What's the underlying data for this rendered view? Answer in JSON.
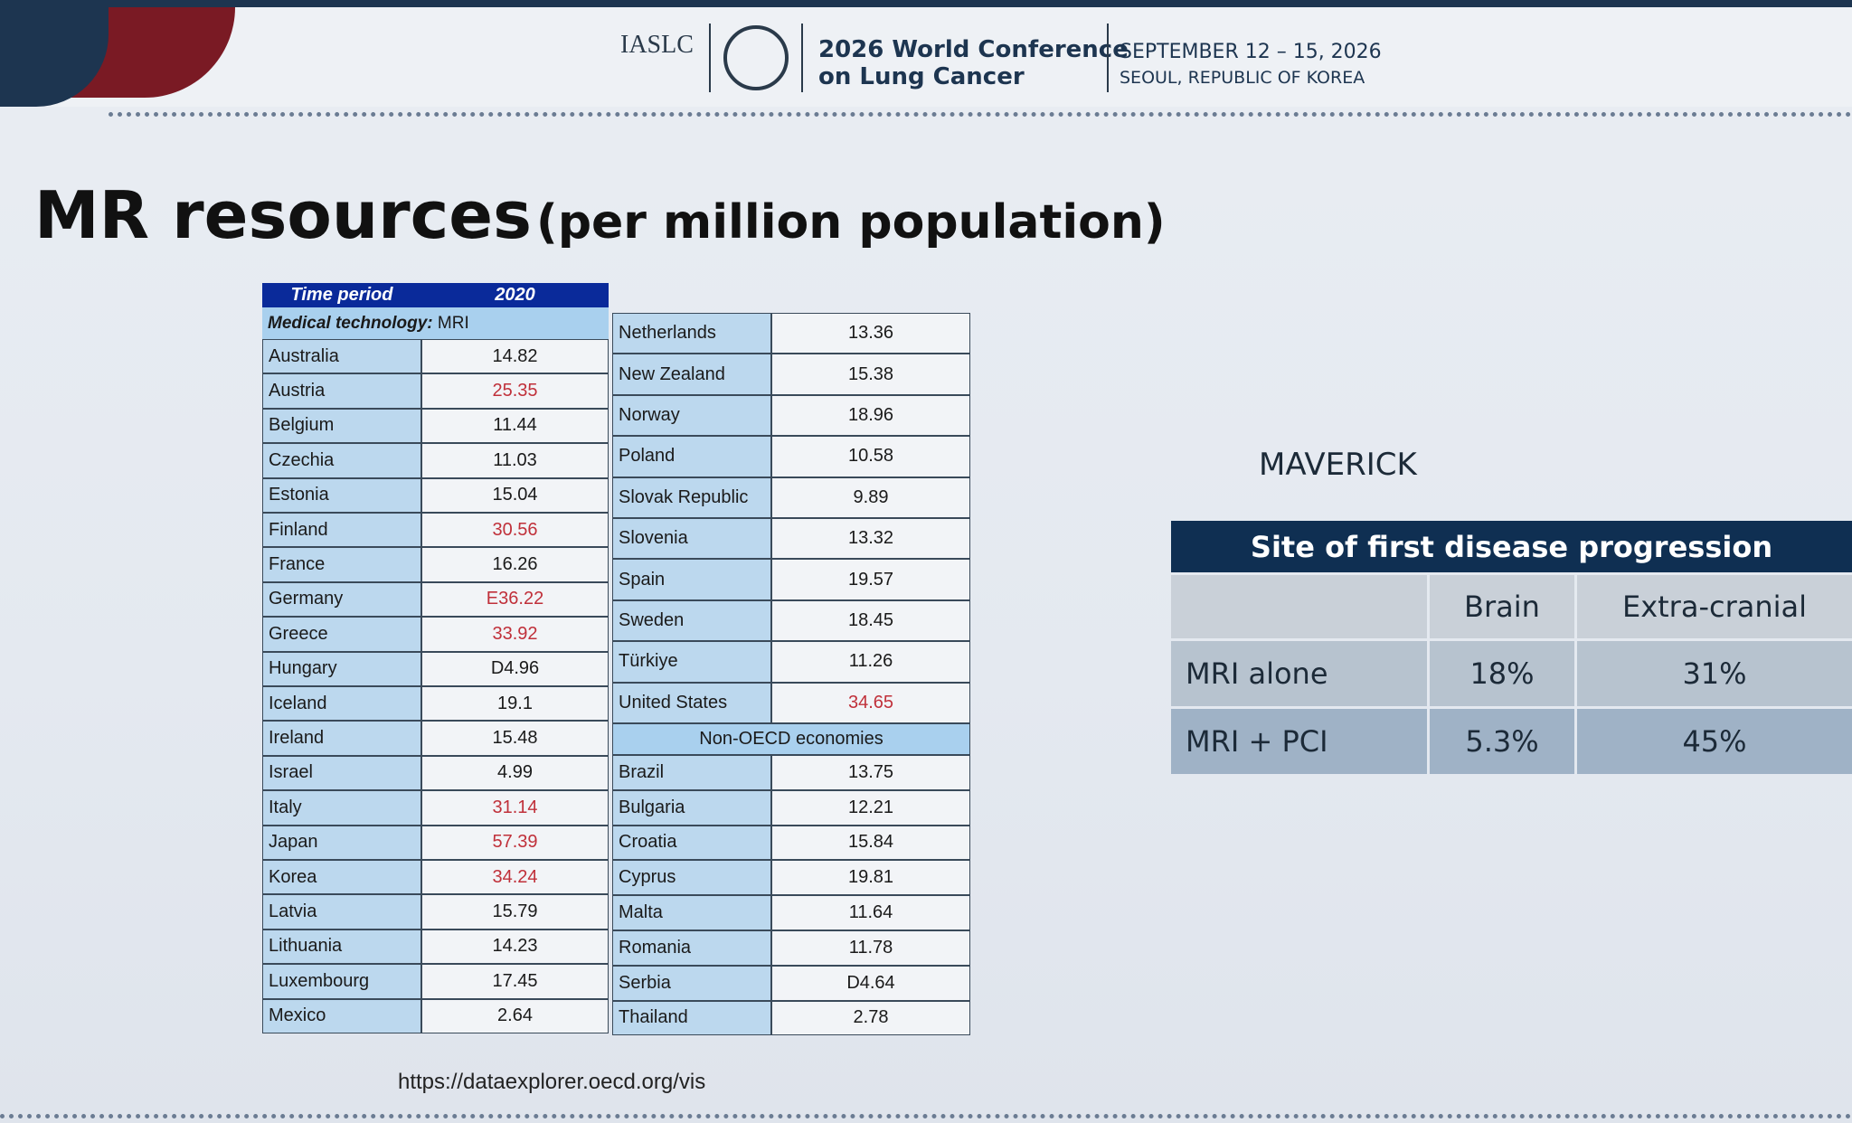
{
  "header": {
    "org": "IASLC",
    "conference": [
      "2026 World Conference",
      "on Lung Cancer"
    ],
    "dates": "SEPTEMBER 12 – 15, 2026",
    "location": "SEOUL, REPUBLIC OF KOREA"
  },
  "title": "MR resources",
  "subtitle": "(per million population)",
  "oecd_table": {
    "header": [
      "Time period",
      "2020"
    ],
    "subheader": [
      "Medical technology:",
      "MRI"
    ],
    "left_rows": [
      {
        "country": "Australia",
        "value": "14.82"
      },
      {
        "country": "Austria",
        "value": "25.35",
        "highlight": true
      },
      {
        "country": "Belgium",
        "value": "11.44"
      },
      {
        "country": "Czechia",
        "value": "11.03"
      },
      {
        "country": "Estonia",
        "value": "15.04"
      },
      {
        "country": "Finland",
        "value": "30.56",
        "highlight": true
      },
      {
        "country": "France",
        "value": "16.26"
      },
      {
        "country": "Germany",
        "value": "E36.22",
        "highlight": true
      },
      {
        "country": "Greece",
        "value": "33.92",
        "highlight": true
      },
      {
        "country": "Hungary",
        "value": "D4.96"
      },
      {
        "country": "Iceland",
        "value": "19.1"
      },
      {
        "country": "Ireland",
        "value": "15.48"
      },
      {
        "country": "Israel",
        "value": "4.99"
      },
      {
        "country": "Italy",
        "value": "31.14",
        "highlight": true
      },
      {
        "country": "Japan",
        "value": "57.39",
        "highlight": true
      },
      {
        "country": "Korea",
        "value": "34.24",
        "highlight": true
      },
      {
        "country": "Latvia",
        "value": "15.79"
      },
      {
        "country": "Lithuania",
        "value": "14.23"
      },
      {
        "country": "Luxembourg",
        "value": "17.45"
      },
      {
        "country": "Mexico",
        "value": "2.64"
      }
    ],
    "right_rows": [
      {
        "country": "Netherlands",
        "value": "13.36"
      },
      {
        "country": "New Zealand",
        "value": "15.38"
      },
      {
        "country": "Norway",
        "value": "18.96"
      },
      {
        "country": "Poland",
        "value": "10.58"
      },
      {
        "country": "Slovak Republic",
        "value": "9.89"
      },
      {
        "country": "Slovenia",
        "value": "13.32"
      },
      {
        "country": "Spain",
        "value": "19.57"
      },
      {
        "country": "Sweden",
        "value": "18.45"
      },
      {
        "country": "Türkiye",
        "value": "11.26"
      },
      {
        "country": "United States",
        "value": "34.65",
        "highlight": true
      }
    ],
    "non_oecd_label": "Non-OECD economies",
    "non_oecd_rows": [
      {
        "country": "Brazil",
        "value": "13.75"
      },
      {
        "country": "Bulgaria",
        "value": "12.21"
      },
      {
        "country": "Croatia",
        "value": "15.84"
      },
      {
        "country": "Cyprus",
        "value": "19.81"
      },
      {
        "country": "Malta",
        "value": "11.64"
      },
      {
        "country": "Romania",
        "value": "11.78"
      },
      {
        "country": "Serbia",
        "value": "D4.64"
      },
      {
        "country": "Thailand",
        "value": "2.78"
      }
    ]
  },
  "source": "https://dataexplorer.oecd.org/vis",
  "maverick": {
    "label": "MAVERICK",
    "title": "Site of first disease progression",
    "columns": [
      "Brain",
      "Extra-cranial"
    ],
    "rows": [
      [
        "MRI alone",
        "18%",
        "31%"
      ],
      [
        "MRI + PCI",
        "5.3%",
        "45%"
      ]
    ]
  }
}
